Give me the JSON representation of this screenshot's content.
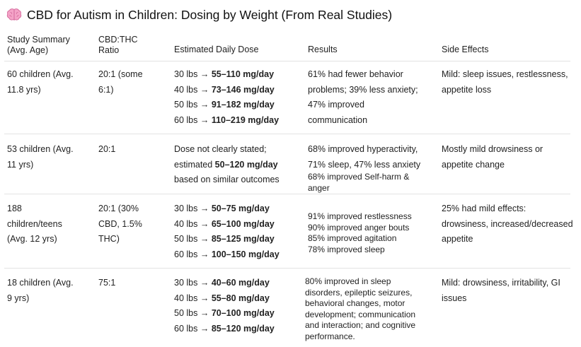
{
  "title": "CBD for Autism in Children: Dosing by Weight (From Real Studies)",
  "title_icon": "brain-icon",
  "headers": {
    "study": [
      "Study Summary",
      "(Avg. Age)"
    ],
    "ratio": [
      "CBD:THC",
      "Ratio"
    ],
    "dose": "Estimated Daily Dose",
    "results": "Results",
    "side_effects": "Side Effects"
  },
  "rows": [
    {
      "study": [
        "60 children (Avg.",
        "11.8 yrs)"
      ],
      "ratio": [
        "20:1 (some",
        "6:1)"
      ],
      "dose": [
        {
          "w": "30 lbs → ",
          "v": "55–110 mg/day"
        },
        {
          "w": "40 lbs → ",
          "v": "73–146 mg/day"
        },
        {
          "w": "50 lbs → ",
          "v": "91–182 mg/day"
        },
        {
          "w": "60 lbs → ",
          "v": "110–219 mg/day"
        }
      ],
      "results": [
        "61% had fewer behavior",
        "problems; 39% less anxiety;",
        "47% improved",
        "communication"
      ],
      "side_effects": [
        "Mild: sleep issues, restlessness,",
        "appetite loss"
      ]
    },
    {
      "study": [
        "53 children (Avg.",
        "11 yrs)"
      ],
      "ratio": [
        "20:1"
      ],
      "dose_text": {
        "a": "Dose not clearly stated;",
        "b_pre": "estimated ",
        "b_bold": "50–120 mg/day",
        "c": "based on similar outcomes"
      },
      "results": [
        "68% improved hyperactivity,",
        "71% sleep, 47% less anxiety"
      ],
      "results_small": [
        "68% improved Self-harm &",
        "anger"
      ],
      "side_effects": [
        "Mostly mild drowsiness or",
        "appetite change"
      ]
    },
    {
      "study": [
        "188",
        "children/teens",
        "(Avg. 12 yrs)"
      ],
      "ratio": [
        "20:1 (30%",
        "CBD, 1.5%",
        "THC)"
      ],
      "dose": [
        {
          "w": "30 lbs → ",
          "v": "50–75 mg/day"
        },
        {
          "w": "40 lbs → ",
          "v": "65–100 mg/day"
        },
        {
          "w": "50 lbs → ",
          "v": "85–125 mg/day"
        },
        {
          "w": "60 lbs → ",
          "v": "100–150 mg/day"
        }
      ],
      "results_small": [
        "91% improved restlessness",
        "90% improved anger bouts",
        "85% improved agitation",
        "78% improved sleep"
      ],
      "side_effects": [
        "25% had mild effects:",
        "drowsiness, increased/decreased",
        "appetite"
      ]
    },
    {
      "study": [
        "18 children (Avg.",
        "9 yrs)"
      ],
      "ratio": [
        "75:1"
      ],
      "dose": [
        {
          "w": "30 lbs → ",
          "v": "40–60 mg/day"
        },
        {
          "w": "40 lbs → ",
          "v": "55–80 mg/day"
        },
        {
          "w": "50 lbs → ",
          "v": "70–100 mg/day"
        },
        {
          "w": "60 lbs → ",
          "v": "85–120 mg/day"
        }
      ],
      "results_small": [
        "80% improved in  sleep",
        "disorders, epileptic seizures,",
        "behavioral changes, motor",
        "development; communication",
        "and interaction; and cognitive",
        "performance."
      ],
      "side_effects": [
        "Mild: drowsiness, irritability, GI",
        "issues"
      ]
    }
  ]
}
